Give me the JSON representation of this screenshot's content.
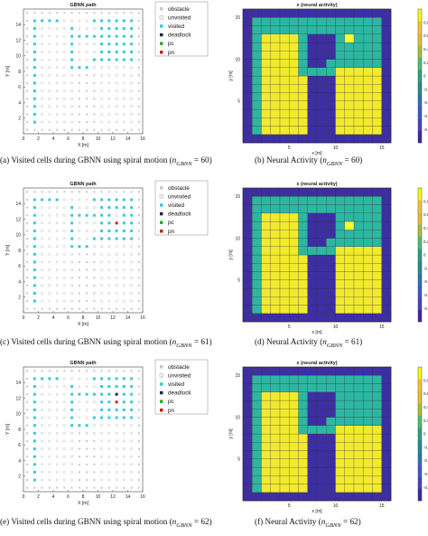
{
  "gbnn_panels": [
    {
      "title": "GBNN path",
      "xlabel": "X [m]",
      "ylabel": "Y [m]",
      "caption": "(a) Visited cells during GBNN using spiral motion (n_GBNN = 60)",
      "caption_parts": [
        "(a) Visited cells during GBNN using spiral motion (",
        "n",
        "GBNN",
        " = 60)"
      ],
      "marks": {
        "visited": [
          [
            1,
            1
          ],
          [
            1,
            2
          ],
          [
            1,
            3
          ],
          [
            1,
            4
          ],
          [
            1,
            5
          ],
          [
            1,
            6
          ],
          [
            1,
            7
          ],
          [
            1,
            8
          ],
          [
            1,
            9
          ],
          [
            1,
            10
          ],
          [
            1,
            11
          ],
          [
            1,
            12
          ],
          [
            1,
            13
          ],
          [
            1,
            14
          ],
          [
            2,
            14
          ],
          [
            3,
            14
          ],
          [
            4,
            14
          ],
          [
            6,
            13
          ],
          [
            6,
            12
          ],
          [
            6,
            11
          ],
          [
            6,
            10
          ],
          [
            6,
            9
          ],
          [
            6,
            8
          ],
          [
            7,
            8
          ],
          [
            8,
            8
          ],
          [
            9,
            9
          ],
          [
            10,
            9
          ],
          [
            11,
            9
          ],
          [
            12,
            9
          ],
          [
            13,
            9
          ],
          [
            14,
            9
          ],
          [
            14,
            10
          ],
          [
            14,
            11
          ],
          [
            14,
            12
          ],
          [
            14,
            13
          ],
          [
            14,
            14
          ],
          [
            13,
            14
          ],
          [
            12,
            14
          ],
          [
            11,
            14
          ],
          [
            10,
            14
          ],
          [
            9,
            14
          ],
          [
            10,
            13
          ],
          [
            11,
            13
          ],
          [
            12,
            13
          ],
          [
            13,
            13
          ],
          [
            10,
            12
          ],
          [
            10,
            11
          ],
          [
            10,
            10
          ],
          [
            11,
            10
          ],
          [
            12,
            10
          ],
          [
            13,
            10
          ],
          [
            11,
            12
          ],
          [
            12,
            12
          ],
          [
            13,
            12
          ],
          [
            11,
            11
          ],
          [
            12,
            11
          ],
          [
            13,
            11
          ],
          [
            7,
            12
          ],
          [
            8,
            12
          ],
          [
            9,
            12
          ]
        ],
        "pc": [],
        "pn": [],
        "deadlock": []
      }
    },
    {
      "title": "GBNN path",
      "xlabel": "X [m]",
      "ylabel": "Y [m]",
      "caption": "(c) Visited cells during GBNN using spiral motion (n_GBNN = 61)",
      "caption_parts": [
        "(c) Visited cells during GBNN using spiral motion (",
        "n",
        "GBNN",
        " = 61)"
      ],
      "marks": {
        "visited": [
          [
            1,
            1
          ],
          [
            1,
            2
          ],
          [
            1,
            3
          ],
          [
            1,
            4
          ],
          [
            1,
            5
          ],
          [
            1,
            6
          ],
          [
            1,
            7
          ],
          [
            1,
            8
          ],
          [
            1,
            9
          ],
          [
            1,
            10
          ],
          [
            1,
            11
          ],
          [
            1,
            12
          ],
          [
            1,
            13
          ],
          [
            1,
            14
          ],
          [
            2,
            14
          ],
          [
            3,
            14
          ],
          [
            4,
            14
          ],
          [
            6,
            13
          ],
          [
            6,
            12
          ],
          [
            6,
            11
          ],
          [
            6,
            10
          ],
          [
            6,
            9
          ],
          [
            6,
            8
          ],
          [
            7,
            8
          ],
          [
            8,
            8
          ],
          [
            9,
            9
          ],
          [
            10,
            9
          ],
          [
            11,
            9
          ],
          [
            12,
            9
          ],
          [
            13,
            9
          ],
          [
            14,
            9
          ],
          [
            14,
            10
          ],
          [
            14,
            11
          ],
          [
            14,
            12
          ],
          [
            14,
            13
          ],
          [
            14,
            14
          ],
          [
            13,
            14
          ],
          [
            12,
            14
          ],
          [
            11,
            14
          ],
          [
            10,
            14
          ],
          [
            9,
            14
          ],
          [
            10,
            13
          ],
          [
            11,
            13
          ],
          [
            12,
            13
          ],
          [
            13,
            13
          ],
          [
            10,
            12
          ],
          [
            10,
            11
          ],
          [
            10,
            10
          ],
          [
            11,
            10
          ],
          [
            12,
            10
          ],
          [
            13,
            10
          ],
          [
            11,
            12
          ],
          [
            13,
            12
          ],
          [
            11,
            11
          ],
          [
            12,
            11
          ],
          [
            13,
            11
          ],
          [
            7,
            12
          ],
          [
            8,
            12
          ],
          [
            9,
            12
          ]
        ],
        "pc": [],
        "pn": [
          [
            12,
            11
          ]
        ],
        "deadlock": []
      }
    },
    {
      "title": "GBNN path",
      "xlabel": "X [m]",
      "ylabel": "Y [m]",
      "caption": "(e) Visited cells during GBNN using spiral motion (n_GBNN = 62)",
      "caption_parts": [
        "(e) Visited cells during GBNN using spiral motion (",
        "n",
        "GBNN",
        " = 62)"
      ],
      "marks": {
        "visited": [
          [
            1,
            1
          ],
          [
            1,
            2
          ],
          [
            1,
            3
          ],
          [
            1,
            4
          ],
          [
            1,
            5
          ],
          [
            1,
            6
          ],
          [
            1,
            7
          ],
          [
            1,
            8
          ],
          [
            1,
            9
          ],
          [
            1,
            10
          ],
          [
            1,
            11
          ],
          [
            1,
            12
          ],
          [
            1,
            13
          ],
          [
            1,
            14
          ],
          [
            2,
            14
          ],
          [
            3,
            14
          ],
          [
            4,
            14
          ],
          [
            6,
            13
          ],
          [
            6,
            12
          ],
          [
            6,
            11
          ],
          [
            6,
            10
          ],
          [
            6,
            9
          ],
          [
            6,
            8
          ],
          [
            7,
            8
          ],
          [
            8,
            8
          ],
          [
            9,
            9
          ],
          [
            10,
            9
          ],
          [
            11,
            9
          ],
          [
            12,
            9
          ],
          [
            13,
            9
          ],
          [
            14,
            9
          ],
          [
            14,
            10
          ],
          [
            14,
            11
          ],
          [
            14,
            12
          ],
          [
            14,
            13
          ],
          [
            14,
            14
          ],
          [
            13,
            14
          ],
          [
            12,
            14
          ],
          [
            11,
            14
          ],
          [
            10,
            14
          ],
          [
            9,
            14
          ],
          [
            10,
            13
          ],
          [
            11,
            13
          ],
          [
            12,
            13
          ],
          [
            13,
            13
          ],
          [
            10,
            12
          ],
          [
            10,
            11
          ],
          [
            10,
            10
          ],
          [
            11,
            10
          ],
          [
            12,
            10
          ],
          [
            13,
            10
          ],
          [
            11,
            12
          ],
          [
            13,
            12
          ],
          [
            11,
            11
          ],
          [
            13,
            11
          ],
          [
            7,
            12
          ],
          [
            8,
            12
          ],
          [
            9,
            12
          ]
        ],
        "pc": [],
        "pn": [
          [
            12,
            11
          ]
        ],
        "deadlock": [
          [
            12,
            12
          ]
        ]
      }
    }
  ],
  "legend": {
    "entries": [
      {
        "key": "obstacle",
        "label": "obstacle",
        "color": "#c8c8c8"
      },
      {
        "key": "unvisited",
        "label": "unvisited",
        "color": "#ffffff"
      },
      {
        "key": "visited",
        "label": "visited",
        "color": "#3cc8d6"
      },
      {
        "key": "deadlock",
        "label": "deadlock",
        "color": "#1a2a40"
      },
      {
        "key": "pc",
        "label": "pc",
        "color": "#23b023"
      },
      {
        "key": "pn",
        "label": "pn",
        "color": "#cc1f1f"
      }
    ]
  },
  "gbnn_axes": {
    "xlim": [
      0,
      16
    ],
    "ylim": [
      0,
      16
    ],
    "xticks": [
      "0",
      "2",
      "4",
      "6",
      "8",
      "10",
      "12",
      "14",
      "16"
    ],
    "yticks": [
      "2",
      "4",
      "6",
      "8",
      "10",
      "12",
      "14"
    ]
  },
  "heatmap_panels": [
    {
      "title": "x (neural activity)",
      "xlabel": "x [m]",
      "ylabel": "y [m]",
      "caption": "(b) Neural Activity (n_GBNN = 60)",
      "caption_parts": [
        "(b) Neural Activity (",
        "n",
        "GBNN",
        " = 60)"
      ],
      "hot_cell": [
        11,
        12
      ]
    },
    {
      "title": "x (neural activity)",
      "xlabel": "x [m]",
      "ylabel": "y [m]",
      "caption": "(d) Neural Activity (n_GBNN = 61)",
      "caption_parts": [
        "(d) Neural Activity (",
        "n",
        "GBNN",
        " = 61)"
      ],
      "hot_cell": [
        11,
        11
      ]
    },
    {
      "title": "x (neural activity)",
      "xlabel": "x [m]",
      "ylabel": "y [m]",
      "caption": "(f) Neural Activity (n_GBNN = 62)",
      "caption_parts": [
        "(f) Neural Activity (",
        "n",
        "GBNN",
        " = 62)"
      ],
      "hot_cell": null
    }
  ],
  "heatmap_axes": {
    "xticks": [
      "5",
      "10",
      "15"
    ],
    "yticks": [
      "5",
      "10",
      "15"
    ],
    "colorbar_ticks": [
      "0.8",
      "0.6",
      "0.4",
      "0.2",
      "0",
      "-0.2",
      "-0.4",
      "-0.6",
      "-0.8"
    ],
    "colors": {
      "obstacle": "#3e2ea4",
      "unvisited": "#f2ea2d",
      "visited": "#2cb7a3",
      "hot": "#ffff33"
    }
  },
  "chart_data": [
    {
      "type": "scatter",
      "title": "GBNN path",
      "xlabel": "X [m]",
      "ylabel": "Y [m]",
      "xlim": [
        0,
        16
      ],
      "ylim": [
        0,
        16
      ],
      "series": [
        {
          "name": "visited",
          "note": "see gbnn_panels[0].marks.visited"
        }
      ]
    },
    {
      "type": "heatmap",
      "title": "x (neural activity)",
      "xlabel": "x [m]",
      "ylabel": "y [m]",
      "clim": [
        -1,
        1
      ]
    },
    {
      "type": "scatter",
      "title": "GBNN path",
      "xlabel": "X [m]",
      "ylabel": "Y [m]",
      "xlim": [
        0,
        16
      ],
      "ylim": [
        0,
        16
      ]
    },
    {
      "type": "heatmap",
      "title": "x (neural activity)",
      "xlabel": "x [m]",
      "ylabel": "y [m]",
      "clim": [
        -1,
        1
      ]
    },
    {
      "type": "scatter",
      "title": "GBNN path",
      "xlabel": "X [m]",
      "ylabel": "Y [m]",
      "xlim": [
        0,
        16
      ],
      "ylim": [
        0,
        16
      ]
    },
    {
      "type": "heatmap",
      "title": "x (neural activity)",
      "xlabel": "x [m]",
      "ylabel": "y [m]",
      "clim": [
        -1,
        1
      ]
    }
  ]
}
